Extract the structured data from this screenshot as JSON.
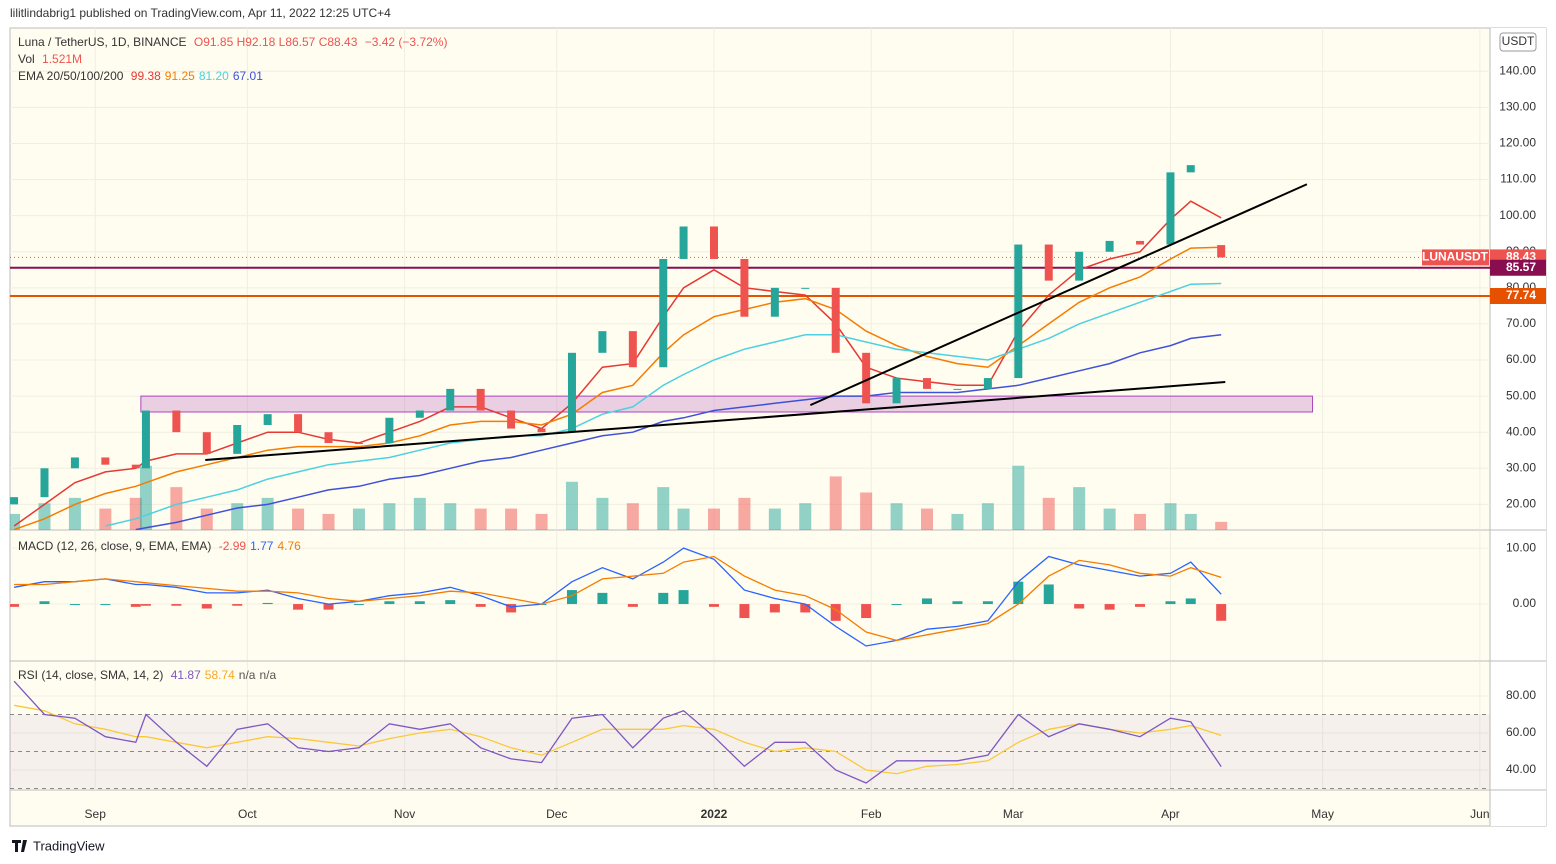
{
  "header": {
    "publisher": "lilitlindabrig1 published on TradingView.com, Apr 11, 2022 12:25 UTC+4"
  },
  "footer": {
    "brand": "TradingView"
  },
  "currency_button": "USDT",
  "chart_data": {
    "type": "candlestick",
    "legend": {
      "symbol": "Luna / TetherUS, 1D, BINANCE",
      "ohlc": [
        "O91.85",
        "H92.18",
        "L86.57",
        "C88.43"
      ],
      "change": "−3.42 (−3.72%)",
      "vol_label": "Vol",
      "vol_value": "1.521M",
      "ema_label": "EMA 20/50/100/200",
      "ema_values": [
        "99.38",
        "91.25",
        "81.20",
        "67.01"
      ]
    },
    "x": [
      -16,
      -10,
      -4,
      2,
      8,
      10,
      16,
      22,
      28,
      34,
      40,
      46,
      52,
      58,
      64,
      70,
      76,
      82,
      88,
      94,
      100,
      106,
      112,
      116,
      122,
      128,
      134,
      140,
      146,
      152,
      158,
      164,
      170,
      176,
      182,
      188,
      194,
      200,
      206,
      212,
      216,
      222
    ],
    "xlim": [
      -16.8,
      275
    ],
    "xticks": [
      {
        "value": 0,
        "label": "Sep"
      },
      {
        "value": 30,
        "label": "Oct"
      },
      {
        "value": 61,
        "label": "Nov"
      },
      {
        "value": 91,
        "label": "Dec"
      },
      {
        "value": 122,
        "label": "2022"
      },
      {
        "value": 153,
        "label": "Feb"
      },
      {
        "value": 181,
        "label": "Mar"
      },
      {
        "value": 212,
        "label": "Apr"
      },
      {
        "value": 242,
        "label": "May"
      },
      {
        "value": 273,
        "label": "Jun"
      }
    ],
    "open": [
      20,
      22,
      30,
      33,
      31,
      30,
      46,
      40,
      34,
      42,
      45,
      40,
      37,
      37,
      44,
      46,
      52,
      46,
      41,
      40,
      62,
      68,
      58,
      88,
      97,
      88,
      72,
      80,
      80,
      62,
      48,
      55,
      52,
      52,
      55,
      92,
      82,
      90,
      93,
      92,
      112,
      91.85
    ],
    "close": [
      22,
      30,
      33,
      31,
      30,
      46,
      40,
      34,
      42,
      45,
      40,
      37,
      37,
      44,
      46,
      52,
      46,
      41,
      40,
      62,
      68,
      58,
      88,
      97,
      88,
      72,
      80,
      80,
      62,
      48,
      55,
      52,
      52,
      55,
      92,
      82,
      90,
      93,
      92,
      112,
      114,
      88.43
    ],
    "up_color": "#26a69a",
    "down_color": "#ef5350",
    "ylim": [
      12.9,
      152
    ],
    "yticks": [
      {
        "value": 20,
        "label": "20.00"
      },
      {
        "value": 30,
        "label": "30.00"
      },
      {
        "value": 40,
        "label": "40.00"
      },
      {
        "value": 50,
        "label": "50.00"
      },
      {
        "value": 60,
        "label": "60.00"
      },
      {
        "value": 70,
        "label": "70.00"
      },
      {
        "value": 80,
        "label": "80.00"
      },
      {
        "value": 90,
        "label": "90.00"
      },
      {
        "value": 100,
        "label": "100.00"
      },
      {
        "value": 110,
        "label": "110.00"
      },
      {
        "value": 120,
        "label": "120.00"
      },
      {
        "value": 130,
        "label": "130.00"
      },
      {
        "value": 140,
        "label": "140.00"
      }
    ],
    "ema_lines": [
      {
        "color": "#e53935",
        "values": [
          14,
          20,
          26,
          29,
          30,
          32,
          34,
          34,
          37,
          40,
          40,
          38,
          37,
          40,
          43,
          47,
          47,
          44,
          41,
          48,
          58,
          59,
          72,
          80,
          85,
          80,
          79,
          78,
          70,
          58,
          55,
          54,
          53,
          53,
          68,
          78,
          85,
          88,
          90,
          99,
          104,
          99.38
        ]
      },
      {
        "color": "#f57c00",
        "values": [
          13,
          16,
          20,
          23,
          25,
          26,
          29,
          31,
          33,
          35,
          36,
          36,
          36,
          37,
          39,
          42,
          43,
          43,
          42,
          45,
          51,
          53,
          62,
          67,
          72,
          74,
          76,
          77,
          74,
          68,
          64,
          61,
          59,
          58,
          64,
          70,
          76,
          80,
          83,
          88,
          91,
          91.25
        ]
      },
      {
        "color": "#4dd0e1",
        "values": [
          null,
          null,
          null,
          14,
          16,
          17,
          20,
          22,
          24,
          27,
          29,
          31,
          32,
          33,
          35,
          37,
          38,
          39,
          39,
          41,
          45,
          47,
          53,
          56,
          60,
          63,
          65,
          67,
          67,
          65,
          63,
          62,
          61,
          60,
          63,
          66,
          70,
          73,
          76,
          79,
          81,
          81.2
        ]
      },
      {
        "color": "#3f51d8",
        "values": [
          null,
          null,
          null,
          null,
          13,
          13.5,
          15,
          17,
          19,
          20,
          22,
          24,
          25,
          27,
          28,
          30,
          32,
          33,
          35,
          37,
          39,
          40,
          43,
          44,
          46,
          47,
          48,
          49,
          50,
          50,
          51,
          51,
          51,
          52,
          53,
          55,
          57,
          59,
          62,
          64,
          66,
          67.01
        ]
      }
    ],
    "volume": {
      "values": [
        3,
        5,
        6,
        4,
        6,
        12,
        8,
        4,
        5,
        6,
        4,
        3,
        4,
        5,
        6,
        5,
        4,
        4,
        3,
        9,
        6,
        5,
        8,
        4,
        4,
        6,
        4,
        5,
        10,
        7,
        5,
        4,
        3,
        5,
        12,
        6,
        8,
        4,
        3,
        5,
        3,
        1.521
      ],
      "ylim": [
        0,
        14
      ],
      "up_color": "rgba(38,166,154,0.5)",
      "down_color": "rgba(239,83,80,0.5)"
    },
    "levels": [
      {
        "value": 85.57,
        "color": "#880e4f"
      },
      {
        "value": 77.74,
        "color": "#e65100"
      }
    ],
    "last_price_line": {
      "value": 88.43,
      "color": "#ef5350"
    },
    "price_labels": [
      {
        "tag": "LUNAUSDT",
        "value": 88.43,
        "color": "#ef5350"
      },
      {
        "value": 85.57,
        "color": "#880e4f"
      },
      {
        "value": 77.74,
        "color": "#e65100"
      }
    ],
    "zone": {
      "x": [
        9,
        240
      ],
      "y": [
        45.6,
        50
      ],
      "color": "#ab47bc"
    },
    "trendlines": [
      {
        "x": [
          21.7,
          222.8
        ],
        "y": [
          32.3,
          53.9
        ]
      },
      {
        "x": [
          141,
          238.9
        ],
        "y": [
          47.5,
          108.7
        ]
      }
    ],
    "macd": {
      "label": "MACD (12, 26, close, 9, EMA, EMA)",
      "value_texts": [
        "-2.99",
        "1.77",
        "4.76"
      ],
      "value_colors": [
        "#ef5350",
        "#2962ff",
        "#f57c00"
      ],
      "ylim": [
        -10,
        12.7
      ],
      "yticks": [
        {
          "value": 0,
          "label": "0.00"
        },
        {
          "value": 10,
          "label": "10.00"
        }
      ],
      "histogram": [
        -0.5,
        0.5,
        0,
        0,
        -0.5,
        -0.3,
        -0.3,
        -0.8,
        -0.3,
        0.2,
        -1,
        -1,
        0,
        0.5,
        0.5,
        0.7,
        -0.5,
        -1.5,
        0,
        2.5,
        2,
        -0.5,
        2,
        2.5,
        -0.5,
        -2.5,
        -1.5,
        -1.5,
        -3,
        -2.5,
        0,
        1,
        0.5,
        0.5,
        4,
        3.5,
        -0.8,
        -1,
        -0.5,
        0.5,
        1,
        -2.99
      ],
      "macd_line": {
        "color": "#2962ff",
        "values": [
          3,
          4,
          4,
          4.5,
          3.5,
          3.5,
          3,
          2,
          2,
          2.5,
          1,
          0,
          0.5,
          1.5,
          2,
          3,
          1.5,
          -0.5,
          0,
          4,
          6.5,
          4.5,
          7.5,
          10,
          8,
          2.5,
          1,
          0,
          -4,
          -7.5,
          -6.5,
          -4.5,
          -4,
          -3,
          4,
          8.5,
          7,
          6,
          5,
          5.5,
          7.5,
          1.77
        ]
      },
      "signal_line": {
        "color": "#f57c00",
        "values": [
          3.5,
          3.5,
          4,
          4.5,
          4,
          3.8,
          3.3,
          2.8,
          2.3,
          2.3,
          2,
          1,
          0.5,
          1,
          1.5,
          2.3,
          2,
          1,
          0,
          1.5,
          4.5,
          5,
          5.5,
          7.5,
          8.5,
          5,
          2.5,
          1.5,
          -1,
          -5,
          -6.5,
          -5.5,
          -4.5,
          -3.5,
          0,
          5,
          7.8,
          7,
          5.5,
          5,
          6.5,
          4.76
        ]
      },
      "pos_color": "#26a69a",
      "neg_color": "#ef5350"
    },
    "rsi": {
      "label": "RSI (14, close, SMA, 14, 2)",
      "value_texts": [
        "41.87",
        "58.74",
        "n/a",
        "n/a"
      ],
      "value_colors": [
        "#7e57c2",
        "#f9a825",
        "#555",
        "#555"
      ],
      "ylim": [
        29.2,
        98.4
      ],
      "yticks": [
        {
          "value": 40,
          "label": "40.00"
        },
        {
          "value": 60,
          "label": "60.00"
        },
        {
          "value": 80,
          "label": "80.00"
        }
      ],
      "bands": [
        70,
        50,
        30
      ],
      "rsi_line": {
        "color": "#7e57c2",
        "values": [
          88,
          70,
          68,
          58,
          55,
          70,
          55,
          42,
          62,
          65,
          52,
          50,
          52,
          65,
          62,
          65,
          52,
          46,
          44,
          68,
          70,
          52,
          68,
          72,
          58,
          42,
          55,
          55,
          40,
          33,
          45,
          45,
          45,
          48,
          70,
          58,
          65,
          62,
          58,
          68,
          66,
          41.87
        ]
      },
      "sma_line": {
        "color": "#f9c93a",
        "values": [
          75,
          72,
          65,
          62,
          58,
          58,
          55,
          52,
          55,
          58,
          57,
          55,
          53,
          57,
          60,
          62,
          58,
          52,
          48,
          55,
          62,
          62,
          62,
          64,
          62,
          55,
          50,
          52,
          50,
          40,
          38,
          42,
          43,
          45,
          55,
          62,
          65,
          62,
          60,
          62,
          64,
          58.74
        ]
      }
    }
  }
}
